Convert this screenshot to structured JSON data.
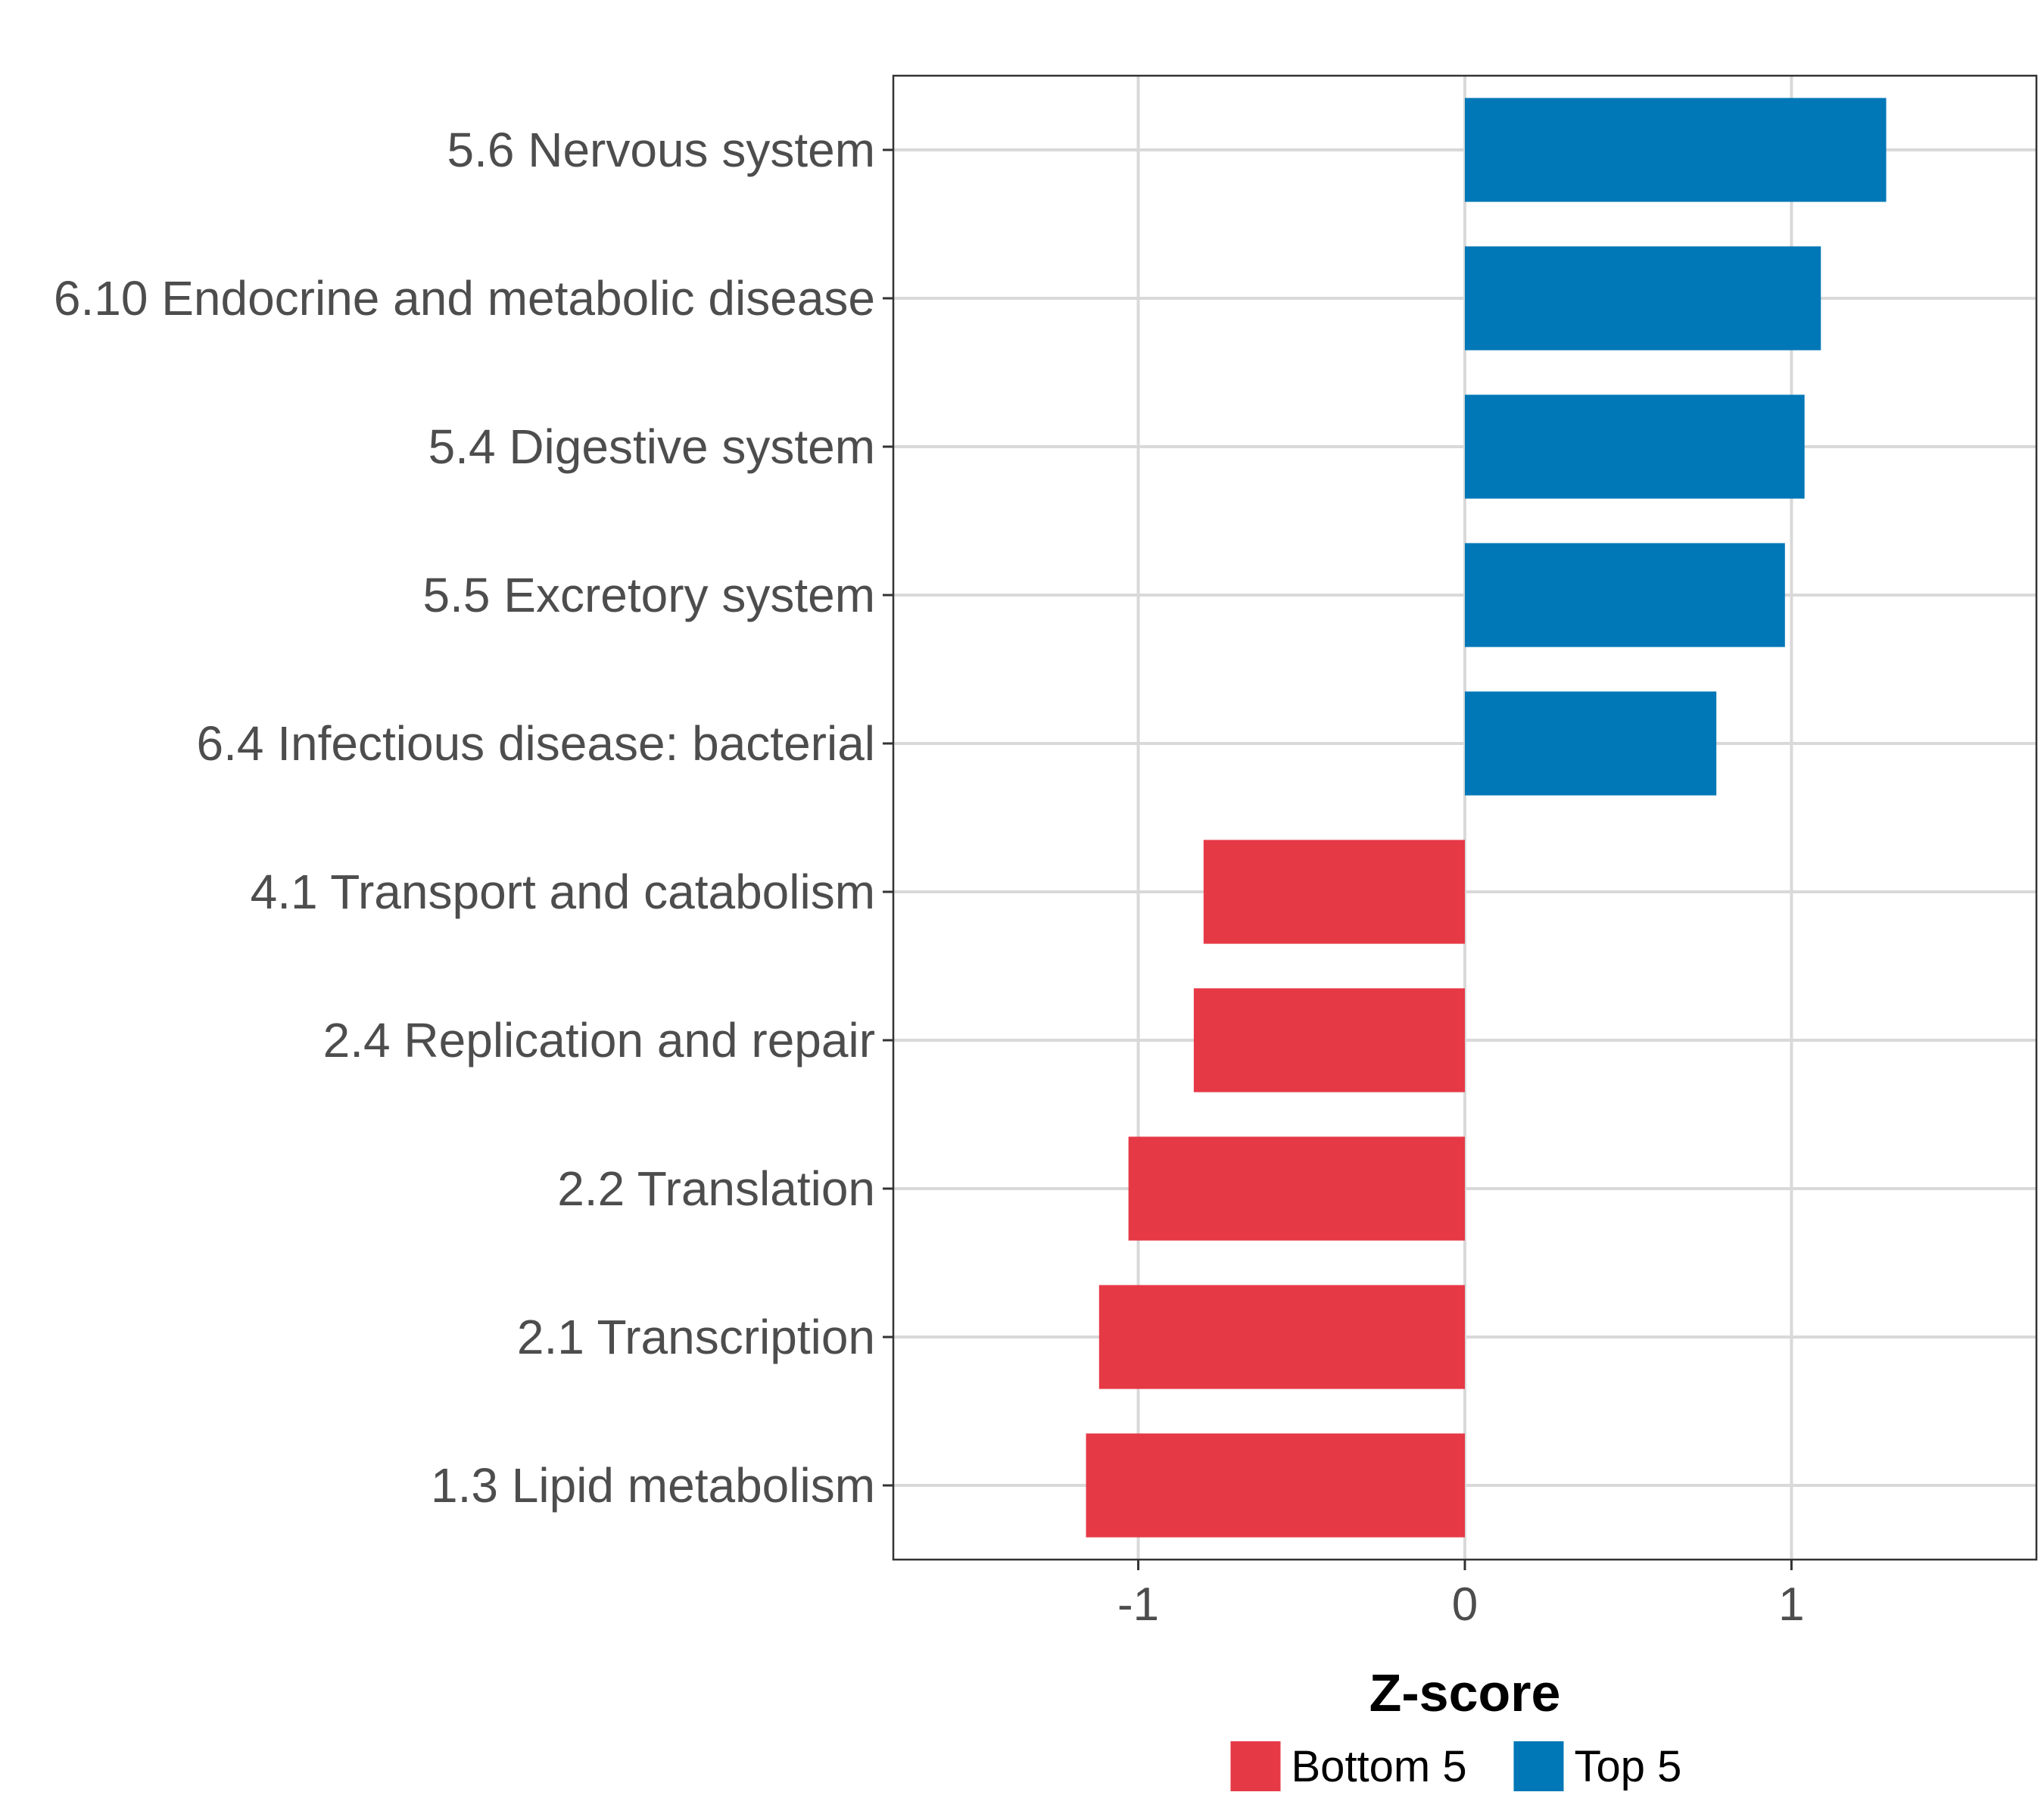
{
  "chart_data": {
    "type": "bar",
    "orientation": "horizontal",
    "title": "",
    "xlabel": "Z-score",
    "ylabel": "",
    "xlim": [
      -1.75,
      1.75
    ],
    "xticks": [
      -1,
      0,
      1
    ],
    "xtick_labels": [
      "-1",
      "0",
      "1"
    ],
    "grid": true,
    "legend_position": "bottom",
    "categories": [
      "5.6 Nervous system",
      "6.10 Endocrine and metabolic disease",
      "5.4 Digestive system",
      "5.5 Excretory system",
      "6.4 Infectious disease: bacterial",
      "4.1 Transport and catabolism",
      "2.4 Replication and repair",
      "2.2 Translation",
      "2.1 Transcription",
      "1.3 Lipid metabolism"
    ],
    "values": [
      1.29,
      1.09,
      1.04,
      0.98,
      0.77,
      -0.8,
      -0.83,
      -1.03,
      -1.12,
      -1.16
    ],
    "groups": [
      "Top 5",
      "Top 5",
      "Top 5",
      "Top 5",
      "Top 5",
      "Bottom 5",
      "Bottom 5",
      "Bottom 5",
      "Bottom 5",
      "Bottom 5"
    ],
    "legend": [
      {
        "name": "Bottom 5",
        "color": "#e63946"
      },
      {
        "name": "Top 5",
        "color": "#0077b6"
      }
    ]
  }
}
